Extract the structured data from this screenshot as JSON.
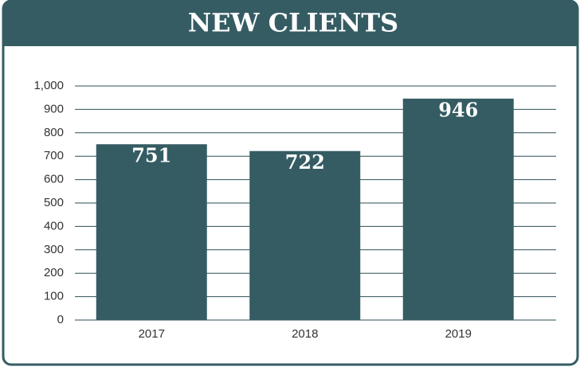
{
  "chart_data": {
    "type": "bar",
    "title": "NEW CLIENTS",
    "categories": [
      "2017",
      "2018",
      "2019"
    ],
    "values": [
      751,
      722,
      946
    ],
    "color": "#355c63",
    "ylim": [
      0,
      1000
    ],
    "yticks": [
      0,
      100,
      200,
      300,
      400,
      500,
      600,
      700,
      800,
      900,
      {
        "value": 1000,
        "label": "1,000"
      }
    ],
    "grid": true
  }
}
